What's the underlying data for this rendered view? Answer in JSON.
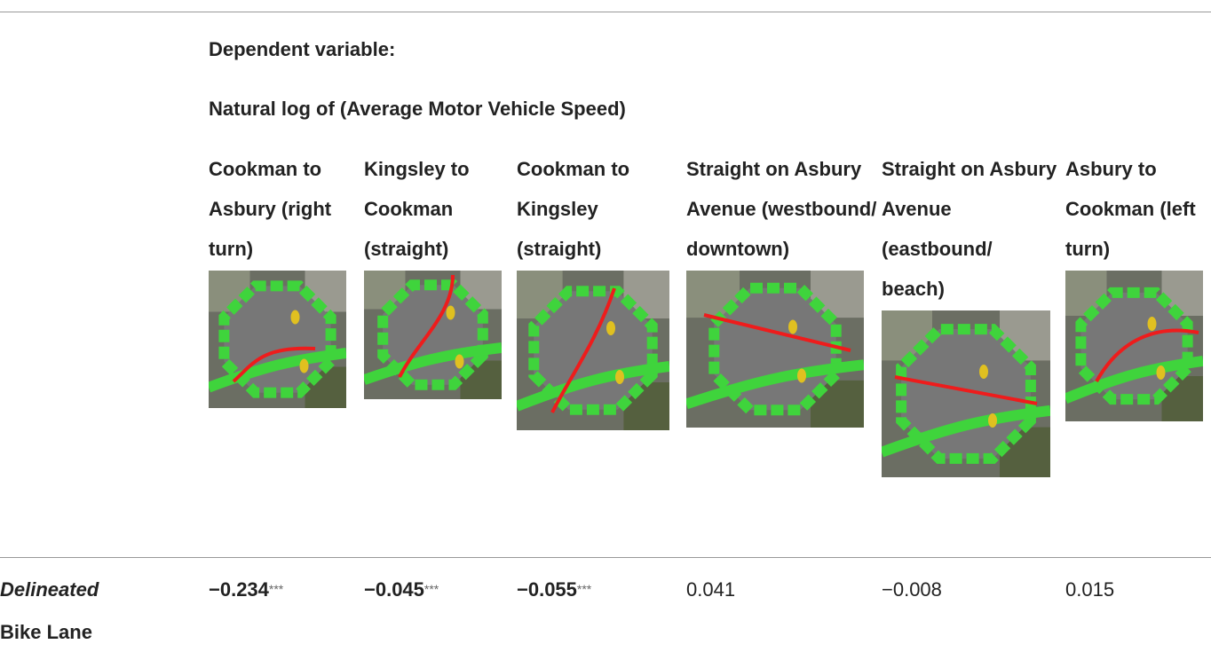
{
  "header": {
    "dependent_label": "Dependent variable:",
    "dependent_variable": "Natural log of (Average Motor Vehicle Speed)"
  },
  "columns": [
    "Cookman to Asbury (right turn)",
    "Kingsley to Cookman (straight)",
    "Cookman to Kingsley (straight)",
    "Straight on Asbury Avenue (westbound/ downtown)",
    "Straight on Asbury Avenue (eastbound/ beach)",
    "Asbury to Cookman (left turn)"
  ],
  "rows": [
    {
      "label_italic": "Delineated",
      "label": "Bike Lane",
      "cells": [
        {
          "value": "−0.234",
          "stars": "***",
          "bold": true
        },
        {
          "value": "−0.045",
          "stars": "***",
          "bold": true
        },
        {
          "value": "−0.055",
          "stars": "***",
          "bold": true
        },
        {
          "value": "0.041"
        },
        {
          "value": "−0.008"
        },
        {
          "value": "0.015"
        }
      ]
    }
  ]
}
